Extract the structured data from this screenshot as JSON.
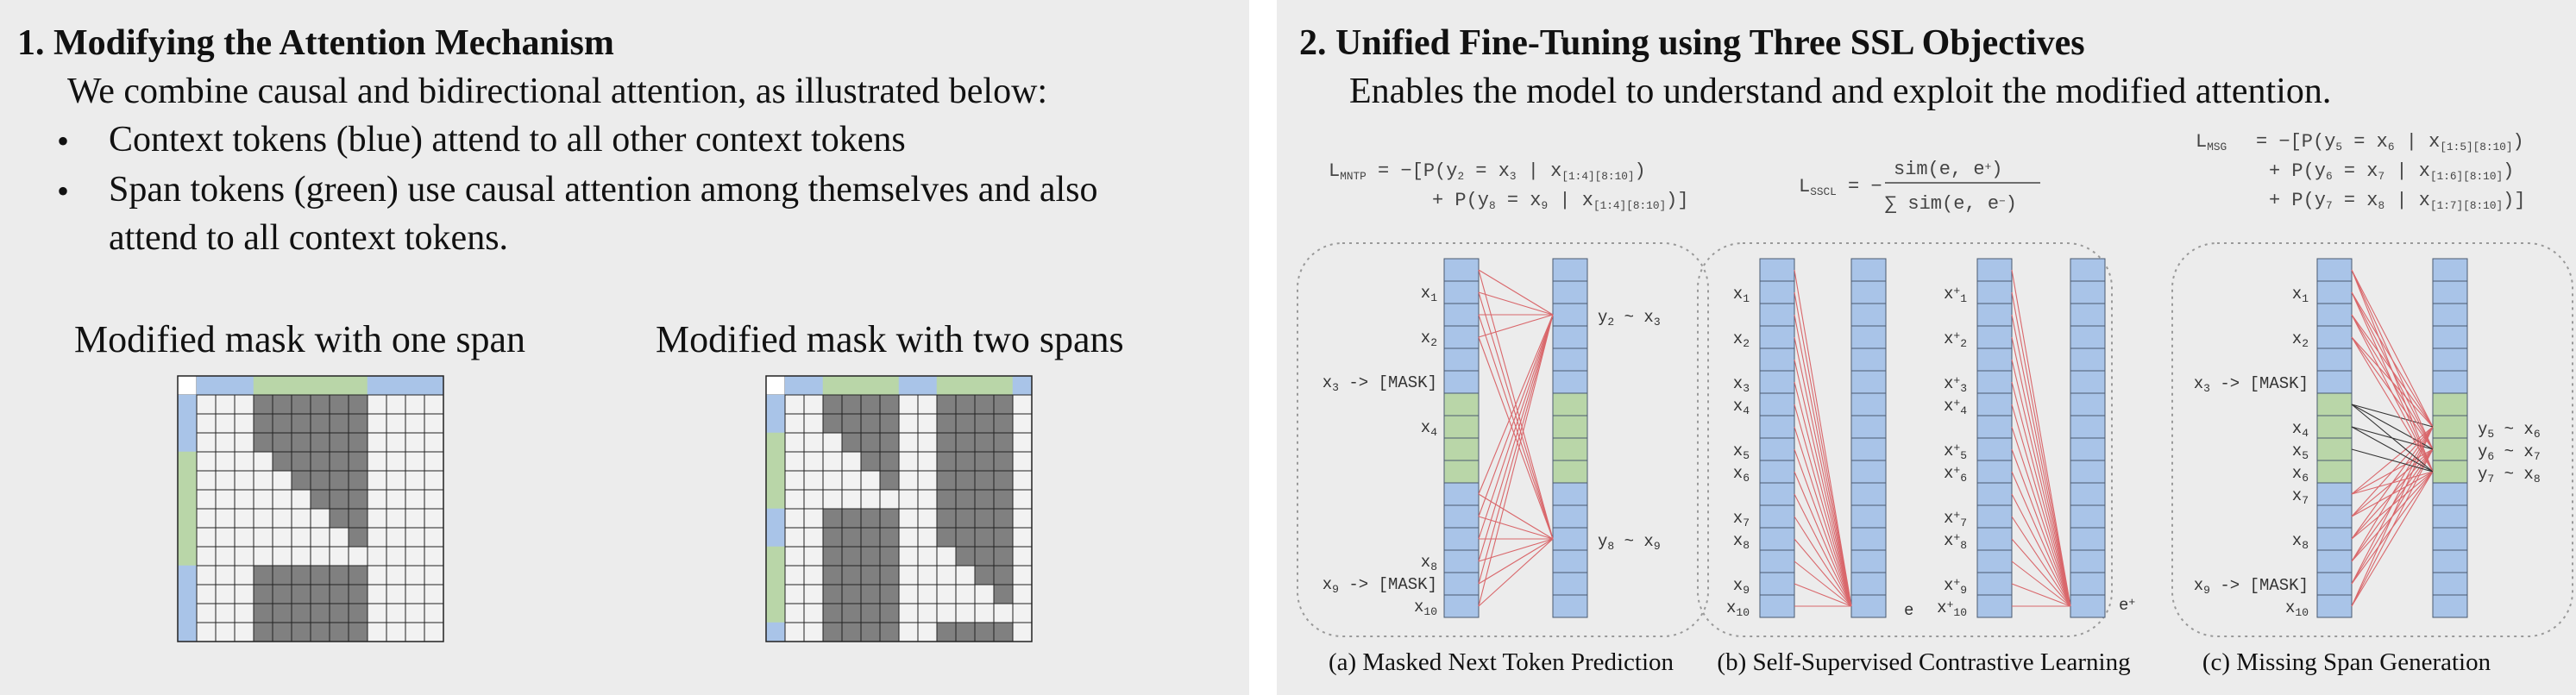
{
  "left": {
    "heading": "1.  Modifying the Attention Mechanism",
    "intro": "We combine causal and bidirectional attention, as illustrated below:",
    "bullets": [
      {
        "line1": "Context tokens (blue) attend to all other context tokens"
      },
      {
        "line1": "Span tokens (green) use causal attention among themselves and also",
        "line2": "attend to all context tokens."
      }
    ],
    "bullet_symbol": "•",
    "mask_one_title": "Modified mask with one span",
    "mask_two_title": "Modified mask with two spans"
  },
  "right": {
    "heading": "2.  Unified Fine-Tuning using Three SSL Objectives",
    "intro": "Enables the model to understand and exploit the modified attention.",
    "formula_mntp_line1": "L",
    "formula_mntp_sub": "MNTP",
    "formula_mntp_rhs1": "= −[P(y",
    "formula_mntp_rhs1_sub1": "2",
    "formula_mntp_rhs1_mid": "= x",
    "formula_mntp_rhs1_sub2": "3",
    "formula_mntp_rhs1_cond": "| x",
    "formula_mntp_rhs1_sub3": "[1:4][8:10]",
    "formula_mntp_rhs1_end": ")",
    "formula_mntp_rhs2": "+ P(y",
    "formula_mntp_rhs2_sub1": "8",
    "formula_mntp_rhs2_mid": "= x",
    "formula_mntp_rhs2_sub2": "9",
    "formula_mntp_rhs2_cond": "| x",
    "formula_mntp_rhs2_sub3": "[1:4][8:10]",
    "formula_mntp_rhs2_end": ")]",
    "formula_sscl_L": "L",
    "formula_sscl_sub": "SSCL",
    "formula_sscl_eq": "= −",
    "formula_sscl_num": "sim(e, e",
    "formula_sscl_num_sup": "+",
    "formula_sscl_num_end": ")",
    "formula_sscl_den": "∑ sim(e, e",
    "formula_sscl_den_sup": "−",
    "formula_sscl_den_end": ")",
    "formula_msg_L": "L",
    "formula_msg_sub": "MSG",
    "formula_msg_lines": [
      {
        "pre": "= −[P(y",
        "s1": "5",
        "mid": "= x",
        "s2": "6",
        "cond": "| x",
        "s3": "[1:5][8:10]",
        "end": ")"
      },
      {
        "pre": "+ P(y",
        "s1": "6",
        "mid": "= x",
        "s2": "7",
        "cond": "| x",
        "s3": "[1:6][8:10]",
        "end": ")"
      },
      {
        "pre": "+ P(y",
        "s1": "7",
        "mid": "= x",
        "s2": "8",
        "cond": "| x",
        "s3": "[1:7][8:10]",
        "end": ")]"
      }
    ],
    "caption_a": "(a) Masked Next Token Prediction",
    "caption_b": "(b) Self-Supervised Contrastive Learning",
    "caption_c": "(c) Missing Span Generation",
    "diagram_a": {
      "labels": [
        {
          "base": "x",
          "sub": "1"
        },
        {
          "base": "x",
          "sub": "2"
        },
        {
          "base": "x",
          "sub": "3",
          "post": " -> [MASK]"
        },
        {
          "base": "x",
          "sub": "4"
        },
        {
          "base": "x",
          "sub": "8"
        },
        {
          "base": "x",
          "sub": "9",
          "post": " -> [MASK]"
        },
        {
          "base": "x",
          "sub": "10"
        }
      ],
      "outputs": [
        {
          "y": "y",
          "ysub": "2",
          "x": "x",
          "xsub": "3"
        },
        {
          "y": "y",
          "ysub": "8",
          "x": "x",
          "xsub": "9"
        }
      ],
      "tilde": "~"
    },
    "diagram_b": {
      "left_labels": [
        "1",
        "2",
        "3",
        "4",
        "5",
        "6",
        "7",
        "8",
        "9",
        "10"
      ],
      "right_labels": [
        "1",
        "2",
        "3",
        "4",
        "5",
        "6",
        "7",
        "8",
        "9",
        "10"
      ],
      "x": "x",
      "plus": "+",
      "e_label": "e",
      "e_plus_label": "e",
      "e_plus_sup": "+"
    },
    "diagram_c": {
      "labels": [
        {
          "base": "x",
          "sub": "1"
        },
        {
          "base": "x",
          "sub": "2"
        },
        {
          "base": "x",
          "sub": "3",
          "post": " -> [MASK]"
        },
        {
          "base": "x",
          "sub": "4"
        },
        {
          "base": "x",
          "sub": "5"
        },
        {
          "base": "x",
          "sub": "6"
        },
        {
          "base": "x",
          "sub": "7"
        },
        {
          "base": "x",
          "sub": "8"
        },
        {
          "base": "x",
          "sub": "9",
          "post": " -> [MASK]"
        },
        {
          "base": "x",
          "sub": "10"
        }
      ],
      "outputs": [
        {
          "y": "y",
          "ysub": "5",
          "x": "x",
          "xsub": "6"
        },
        {
          "y": "y",
          "ysub": "6",
          "x": "x",
          "xsub": "7"
        },
        {
          "y": "y",
          "ysub": "7",
          "x": "x",
          "xsub": "8"
        }
      ]
    }
  },
  "colors": {
    "blue": "#a9c4e8",
    "green": "#b9d6a8",
    "dark": "#808080",
    "light": "#f2f2f2",
    "line_red": "#d9676b",
    "line_black": "#333333",
    "border": "#222222"
  }
}
